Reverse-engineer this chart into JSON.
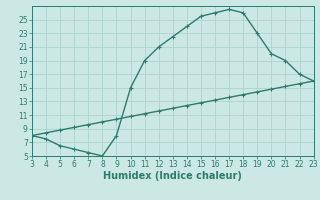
{
  "xlabel": "Humidex (Indice chaleur)",
  "bg_color": "#cce8e4",
  "line_color": "#2d7b6e",
  "grid_color": "#aed4ce",
  "xlim": [
    3,
    23
  ],
  "ylim": [
    5,
    27
  ],
  "xticks": [
    3,
    4,
    5,
    6,
    7,
    8,
    9,
    10,
    11,
    12,
    13,
    14,
    15,
    16,
    17,
    18,
    19,
    20,
    21,
    22,
    23
  ],
  "yticks": [
    5,
    7,
    9,
    11,
    13,
    15,
    17,
    19,
    21,
    23,
    25
  ],
  "upper_x": [
    3,
    4,
    5,
    6,
    7,
    8,
    9,
    10,
    11,
    12,
    13,
    14,
    15,
    16,
    17,
    18,
    19,
    20,
    21,
    22,
    23
  ],
  "upper_y": [
    8,
    7.5,
    6.5,
    6,
    5.5,
    5,
    8,
    15,
    19,
    21,
    22.5,
    24,
    25.5,
    26,
    26.5,
    26,
    23,
    20,
    19,
    17,
    16
  ],
  "lower_x": [
    3,
    4,
    5,
    6,
    7,
    8,
    9,
    10,
    11,
    12,
    13,
    14,
    15,
    16,
    17,
    18,
    19,
    20,
    21,
    22,
    23
  ],
  "lower_y": [
    8,
    8.4,
    8.8,
    9.2,
    9.6,
    10.0,
    10.4,
    10.8,
    11.2,
    11.6,
    12.0,
    12.4,
    12.8,
    13.2,
    13.6,
    14.0,
    14.4,
    14.8,
    15.2,
    15.6,
    16.0
  ],
  "marker_size": 2.5,
  "line_width": 1.0,
  "xlabel_fontsize": 7,
  "tick_fontsize": 5.5
}
